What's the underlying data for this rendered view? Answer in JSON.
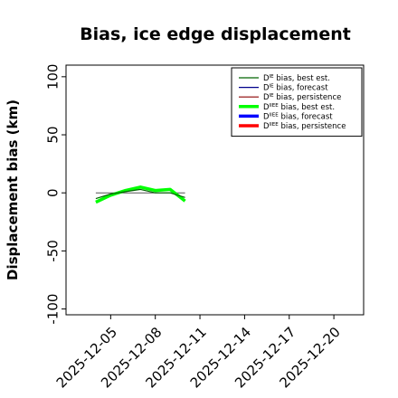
{
  "chart_data": {
    "type": "line",
    "title": "Bias, ice edge displacement",
    "ylabel": "Displacement bias (km)",
    "xlabel": "",
    "ylim": [
      -105,
      110
    ],
    "xlim": [
      "2025-12-02",
      "2025-12-22"
    ],
    "y_ticks": [
      -100,
      -50,
      0,
      50,
      100
    ],
    "x_ticks": [
      {
        "date": "2025-12-05",
        "label": "2025-12-05",
        "color": "#000000"
      },
      {
        "date": "2025-12-08",
        "label": "2025-12-08",
        "color": "#000000"
      },
      {
        "date": "2025-12-11",
        "label": "2025-12-11",
        "color": "#228B22"
      },
      {
        "date": "2025-12-14",
        "label": "2025-12-14",
        "color": "#000000"
      },
      {
        "date": "2025-12-17",
        "label": "2025-12-17",
        "color": "#000000"
      },
      {
        "date": "2025-12-20",
        "label": "2025-12-20",
        "color": "#000000"
      }
    ],
    "grid": false,
    "legend_position": "top-right",
    "series": [
      {
        "name": "D bias, best est.",
        "sup": "IE",
        "color": "#006400",
        "width": 1.2,
        "x": [
          "2025-12-04",
          "2025-12-05",
          "2025-12-06",
          "2025-12-07",
          "2025-12-08",
          "2025-12-09",
          "2025-12-10"
        ],
        "y": [
          -5,
          -1,
          1,
          3,
          0,
          0,
          -4
        ]
      },
      {
        "name": "D bias, forecast",
        "sup": "IE",
        "color": "#00008B",
        "width": 1.2,
        "x": [],
        "y": []
      },
      {
        "name": "D bias, persistence",
        "sup": "IE",
        "color": "#8B0000",
        "width": 1.2,
        "x": [],
        "y": []
      },
      {
        "name": "D bias, best est.",
        "sup": "IIEE",
        "color": "#00FF00",
        "width": 3.5,
        "x": [
          "2025-12-04",
          "2025-12-05",
          "2025-12-06",
          "2025-12-07",
          "2025-12-08",
          "2025-12-09",
          "2025-12-10"
        ],
        "y": [
          -8,
          -2,
          2,
          5,
          2,
          3,
          -7
        ]
      },
      {
        "name": "D bias, forecast",
        "sup": "IIEE",
        "color": "#0000FF",
        "width": 3.5,
        "x": [],
        "y": []
      },
      {
        "name": "D bias, persistence",
        "sup": "IIEE",
        "color": "#FF0000",
        "width": 3.5,
        "x": [],
        "y": []
      }
    ],
    "reference_line": {
      "color": "#555555",
      "x": [
        "2025-12-04",
        "2025-12-10"
      ],
      "y": [
        0,
        0
      ]
    }
  }
}
